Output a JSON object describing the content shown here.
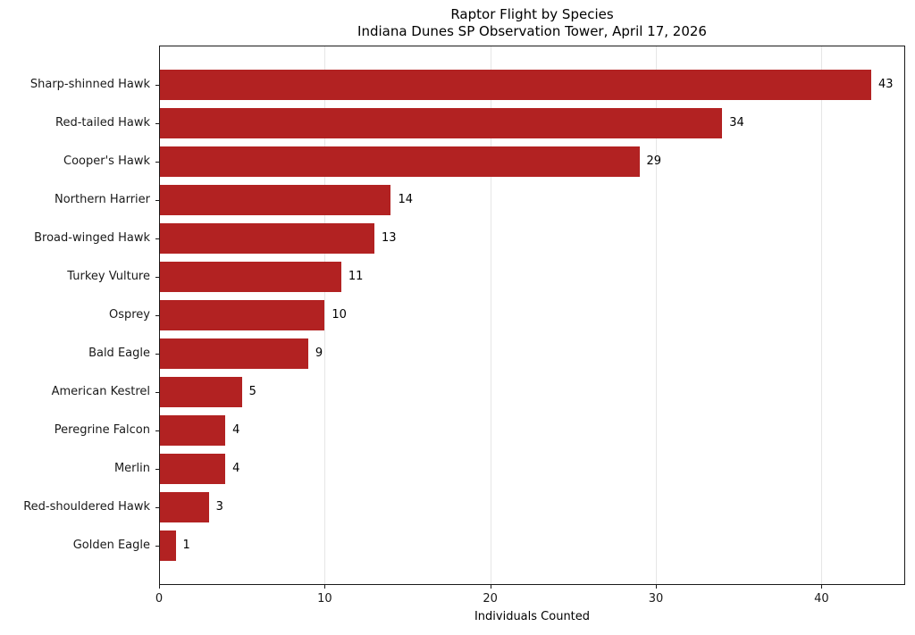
{
  "chart_data": {
    "type": "bar",
    "orientation": "horizontal",
    "title": "Raptor Flight by Species",
    "subtitle": "Indiana Dunes SP Observation Tower, April 17, 2026",
    "xlabel": "Individuals Counted",
    "categories": [
      "Sharp-shinned Hawk",
      "Red-tailed Hawk",
      "Cooper's Hawk",
      "Northern Harrier",
      "Broad-winged Hawk",
      "Turkey Vulture",
      "Osprey",
      "Bald Eagle",
      "American Kestrel",
      "Peregrine Falcon",
      "Merlin",
      "Red-shouldered Hawk",
      "Golden Eagle"
    ],
    "values": [
      43,
      34,
      29,
      14,
      13,
      11,
      10,
      9,
      5,
      4,
      4,
      3,
      1
    ],
    "value_labels_shown": true,
    "xticks": [
      0,
      10,
      20,
      30,
      40
    ],
    "xlim": [
      0,
      45.05
    ],
    "bar_color": "#b22222",
    "grid": "vertical-only",
    "grid_color": "#e6e6e6",
    "axis_color": "#1a1a1a",
    "background_color": "#ffffff",
    "legend": "none"
  }
}
